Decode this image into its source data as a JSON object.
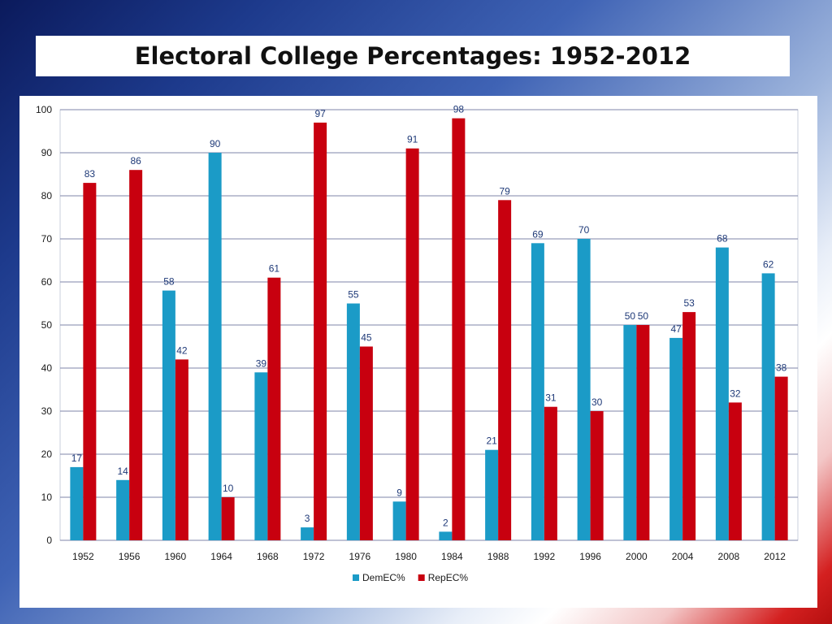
{
  "slide": {
    "title": "Electoral College Percentages: 1952-2012"
  },
  "chart_data": {
    "type": "bar",
    "title": "",
    "xlabel": "",
    "ylabel": "",
    "ylim": [
      0,
      100
    ],
    "yticks": [
      0,
      10,
      20,
      30,
      40,
      50,
      60,
      70,
      80,
      90,
      100
    ],
    "grid": true,
    "legend_position": "bottom",
    "categories": [
      "1952",
      "1956",
      "1960",
      "1964",
      "1968",
      "1972",
      "1976",
      "1980",
      "1984",
      "1988",
      "1992",
      "1996",
      "2000",
      "2004",
      "2008",
      "2012"
    ],
    "series": [
      {
        "name": "DemEC%",
        "color": "#1b9bc7",
        "values": [
          17,
          14,
          58,
          90,
          39,
          3,
          55,
          9,
          2,
          21,
          69,
          70,
          50,
          47,
          68,
          62
        ]
      },
      {
        "name": "RepEC%",
        "color": "#c8000f",
        "values": [
          83,
          86,
          42,
          10,
          61,
          97,
          45,
          91,
          98,
          79,
          31,
          30,
          50,
          53,
          32,
          38
        ]
      }
    ],
    "data_label_color": "#1f3a78"
  }
}
